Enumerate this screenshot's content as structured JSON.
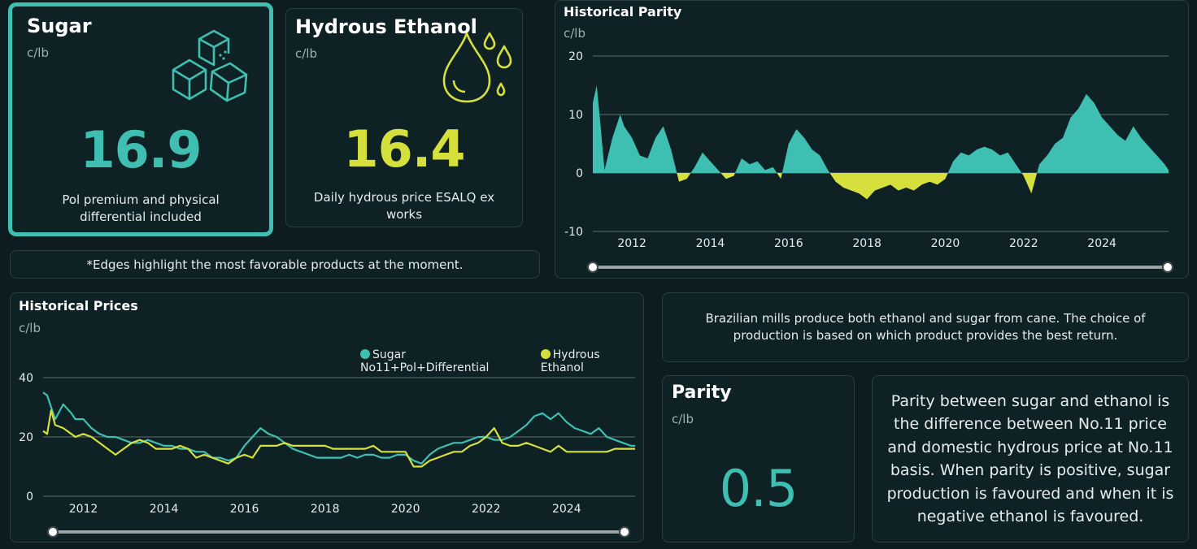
{
  "sugar": {
    "title": "Sugar",
    "unit": "c/lb",
    "value": "16.9",
    "desc": "Pol premium and physical differential included",
    "icon": "sugar-cubes-icon",
    "color": "#3ebfb2"
  },
  "ethanol": {
    "title": "Hydrous Ethanol",
    "unit": "c/lb",
    "value": "16.4",
    "desc": "Daily hydrous price ESALQ ex works",
    "icon": "droplets-icon",
    "color": "#d5e03c"
  },
  "edge_note": "*Edges highlight the most favorable products at the moment.",
  "info_text": "Brazilian mills produce both ethanol and sugar from cane. The choice of production is based on which product provides the best return.",
  "parity": {
    "title": "Parity",
    "unit": "c/lb",
    "value": "0.5"
  },
  "parity_explain": "Parity between sugar and ethanol is the difference between No.11 price and domestic hydrous price at No.11 basis. When parity is positive, sugar production is favoured and when it is negative ethanol is favoured.",
  "colors": {
    "sugar": "#3ebfb2",
    "ethanol": "#d5e03c",
    "background": "#0c1c1f",
    "card": "#0e2124"
  },
  "chart_data": [
    {
      "type": "area",
      "title": "Historical Parity",
      "unit": "c/lb",
      "xlabel": "",
      "ylabel": "",
      "x_ticks": [
        "2012",
        "2014",
        "2016",
        "2018",
        "2020",
        "2022",
        "2024"
      ],
      "y_ticks": [
        20,
        10,
        0,
        -10
      ],
      "xlim": [
        2011.0,
        2025.7
      ],
      "ylim": [
        -10,
        20
      ],
      "positive_color": "#3ebfb2",
      "negative_color": "#d5e03c",
      "grid": true,
      "series": [
        {
          "x": [
            2011.0,
            2011.1,
            2011.2,
            2011.3,
            2011.5,
            2011.7,
            2011.8,
            2012.0,
            2012.2,
            2012.4,
            2012.6,
            2012.8,
            2013.0,
            2013.2,
            2013.4,
            2013.6,
            2013.8,
            2014.0,
            2014.2,
            2014.4,
            2014.6,
            2014.8,
            2015.0,
            2015.2,
            2015.4,
            2015.6,
            2015.8,
            2016.0,
            2016.2,
            2016.4,
            2016.6,
            2016.8,
            2017.0,
            2017.2,
            2017.4,
            2017.6,
            2017.8,
            2018.0,
            2018.2,
            2018.4,
            2018.6,
            2018.8,
            2019.0,
            2019.2,
            2019.4,
            2019.6,
            2019.8,
            2020.0,
            2020.2,
            2020.4,
            2020.6,
            2020.8,
            2021.0,
            2021.2,
            2021.4,
            2021.6,
            2021.8,
            2022.0,
            2022.2,
            2022.4,
            2022.6,
            2022.8,
            2023.0,
            2023.2,
            2023.4,
            2023.6,
            2023.8,
            2024.0,
            2024.2,
            2024.4,
            2024.6,
            2024.8,
            2025.0,
            2025.2,
            2025.4,
            2025.6,
            2025.7
          ],
          "y": [
            12.0,
            15.0,
            8.0,
            0.5,
            6.0,
            10.0,
            8.0,
            6.0,
            3.0,
            2.5,
            6.0,
            8.0,
            4.0,
            -1.5,
            -1.0,
            1.0,
            3.5,
            2.0,
            0.5,
            -1.0,
            -0.5,
            2.5,
            1.5,
            2.0,
            0.5,
            1.0,
            -1.0,
            5.0,
            7.5,
            6.0,
            4.0,
            3.0,
            0.5,
            -1.5,
            -2.5,
            -3.0,
            -3.5,
            -4.5,
            -3.0,
            -2.5,
            -2.0,
            -3.0,
            -2.5,
            -3.0,
            -2.0,
            -1.5,
            -2.0,
            -1.0,
            2.0,
            3.5,
            3.0,
            4.0,
            4.5,
            4.0,
            3.0,
            3.5,
            1.5,
            -0.5,
            -3.5,
            1.5,
            3.0,
            5.0,
            6.0,
            9.5,
            11.0,
            13.5,
            12.0,
            9.5,
            8.0,
            6.5,
            5.5,
            8.0,
            6.0,
            4.5,
            3.0,
            1.5,
            0.5
          ]
        }
      ]
    },
    {
      "type": "line",
      "title": "Historical Prices",
      "unit": "c/lb",
      "xlabel": "",
      "ylabel": "",
      "x_ticks": [
        "2012",
        "2014",
        "2016",
        "2018",
        "2020",
        "2022",
        "2024"
      ],
      "y_ticks": [
        40,
        20,
        0
      ],
      "xlim": [
        2011.0,
        2025.7
      ],
      "ylim": [
        0,
        40
      ],
      "legend": "top-right",
      "grid": true,
      "series": [
        {
          "name": "Sugar No11+Pol+Differential",
          "color": "#3ebfb2",
          "x": [
            2011.0,
            2011.1,
            2011.2,
            2011.3,
            2011.5,
            2011.7,
            2011.8,
            2012.0,
            2012.2,
            2012.4,
            2012.6,
            2012.8,
            2013.0,
            2013.2,
            2013.4,
            2013.6,
            2013.8,
            2014.0,
            2014.2,
            2014.4,
            2014.6,
            2014.8,
            2015.0,
            2015.2,
            2015.4,
            2015.6,
            2015.8,
            2016.0,
            2016.2,
            2016.4,
            2016.6,
            2016.8,
            2017.0,
            2017.2,
            2017.4,
            2017.6,
            2017.8,
            2018.0,
            2018.2,
            2018.4,
            2018.6,
            2018.8,
            2019.0,
            2019.2,
            2019.4,
            2019.6,
            2019.8,
            2020.0,
            2020.2,
            2020.4,
            2020.6,
            2020.8,
            2021.0,
            2021.2,
            2021.4,
            2021.6,
            2021.8,
            2022.0,
            2022.2,
            2022.4,
            2022.6,
            2022.8,
            2023.0,
            2023.2,
            2023.4,
            2023.6,
            2023.8,
            2024.0,
            2024.2,
            2024.4,
            2024.6,
            2024.8,
            2025.0,
            2025.2,
            2025.4,
            2025.6,
            2025.7
          ],
          "y": [
            35,
            34,
            30,
            26,
            31,
            28,
            26,
            26,
            23,
            21,
            20,
            20,
            19,
            18,
            18,
            19,
            18,
            17,
            17,
            16,
            16,
            15,
            15,
            13,
            13,
            12,
            13,
            17,
            20,
            23,
            21,
            20,
            18,
            16,
            15,
            14,
            13,
            13,
            13,
            13,
            14,
            13,
            14,
            14,
            13,
            13,
            14,
            14,
            12,
            11,
            14,
            16,
            17,
            18,
            18,
            19,
            20,
            20,
            19,
            19,
            20,
            22,
            24,
            27,
            28,
            26,
            28,
            25,
            23,
            22,
            21,
            23,
            20,
            19,
            18,
            17,
            17
          ]
        },
        {
          "name": "Hydrous Ethanol",
          "color": "#d5e03c",
          "x": [
            2011.0,
            2011.1,
            2011.2,
            2011.3,
            2011.5,
            2011.7,
            2011.8,
            2012.0,
            2012.2,
            2012.4,
            2012.6,
            2012.8,
            2013.0,
            2013.2,
            2013.4,
            2013.6,
            2013.8,
            2014.0,
            2014.2,
            2014.4,
            2014.6,
            2014.8,
            2015.0,
            2015.2,
            2015.4,
            2015.6,
            2015.8,
            2016.0,
            2016.2,
            2016.4,
            2016.6,
            2016.8,
            2017.0,
            2017.2,
            2017.4,
            2017.6,
            2017.8,
            2018.0,
            2018.2,
            2018.4,
            2018.6,
            2018.8,
            2019.0,
            2019.2,
            2019.4,
            2019.6,
            2019.8,
            2020.0,
            2020.2,
            2020.4,
            2020.6,
            2020.8,
            2021.0,
            2021.2,
            2021.4,
            2021.6,
            2021.8,
            2022.0,
            2022.2,
            2022.4,
            2022.6,
            2022.8,
            2023.0,
            2023.2,
            2023.4,
            2023.6,
            2023.8,
            2024.0,
            2024.2,
            2024.4,
            2024.6,
            2024.8,
            2025.0,
            2025.2,
            2025.4,
            2025.6,
            2025.7
          ],
          "y": [
            22,
            21,
            29,
            24,
            23,
            21,
            20,
            21,
            20,
            18,
            16,
            14,
            16,
            18,
            19,
            18,
            16,
            16,
            16,
            17,
            16,
            13,
            14,
            13,
            12,
            11,
            13,
            14,
            13,
            17,
            17,
            17,
            18,
            17,
            17,
            17,
            17,
            17,
            16,
            16,
            16,
            16,
            16,
            17,
            15,
            15,
            15,
            15,
            10,
            10,
            12,
            13,
            14,
            15,
            15,
            17,
            18,
            20,
            23,
            18,
            17,
            17,
            18,
            17,
            16,
            15,
            17,
            15,
            15,
            15,
            15,
            15,
            15,
            16,
            16,
            16,
            16
          ]
        }
      ]
    }
  ]
}
